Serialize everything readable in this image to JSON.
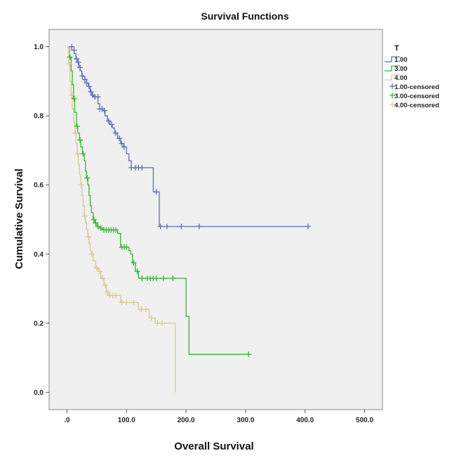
{
  "chart_data": {
    "type": "line",
    "step": true,
    "title": "Survival Functions",
    "xlabel": "Overall Survival",
    "ylabel": "Cumulative Survival",
    "xlim": [
      -30,
      530
    ],
    "ylim": [
      -0.05,
      1.05
    ],
    "x_ticks": [
      0,
      100,
      200,
      300,
      400,
      500
    ],
    "x_tick_labels": [
      ".0",
      "100.0",
      "200.0",
      "300.0",
      "400.0",
      "500.0"
    ],
    "y_ticks": [
      0.0,
      0.2,
      0.4,
      0.6,
      0.8,
      1.0
    ],
    "y_tick_labels": [
      "0.0",
      "0.2",
      "0.4",
      "0.6",
      "0.8",
      "1.0"
    ],
    "grid": false,
    "background": "#f0f0f0",
    "legend": {
      "title": "T",
      "placement": "top-right-outside",
      "entries": [
        "1.00",
        "3.00",
        "4.00",
        "1.00-censored",
        "3.00-censored",
        "4.00-censored"
      ]
    },
    "series": [
      {
        "name": "1.00",
        "color": "#5b6fb8",
        "steps": [
          [
            0,
            1.0
          ],
          [
            8,
            0.99
          ],
          [
            12,
            0.98
          ],
          [
            15,
            0.965
          ],
          [
            18,
            0.955
          ],
          [
            20,
            0.94
          ],
          [
            22,
            0.93
          ],
          [
            25,
            0.915
          ],
          [
            30,
            0.905
          ],
          [
            33,
            0.895
          ],
          [
            36,
            0.885
          ],
          [
            39,
            0.87
          ],
          [
            42,
            0.86
          ],
          [
            45,
            0.855
          ],
          [
            52,
            0.835
          ],
          [
            55,
            0.82
          ],
          [
            60,
            0.815
          ],
          [
            64,
            0.8
          ],
          [
            68,
            0.785
          ],
          [
            72,
            0.775
          ],
          [
            76,
            0.765
          ],
          [
            80,
            0.75
          ],
          [
            85,
            0.735
          ],
          [
            90,
            0.72
          ],
          [
            95,
            0.71
          ],
          [
            100,
            0.69
          ],
          [
            104,
            0.67
          ],
          [
            108,
            0.65
          ],
          [
            145,
            0.58
          ],
          [
            155,
            0.48
          ],
          [
            405,
            0.48
          ]
        ],
        "censored": [
          [
            8,
            1.0
          ],
          [
            12,
            0.99
          ],
          [
            16,
            0.965
          ],
          [
            19,
            0.955
          ],
          [
            22,
            0.94
          ],
          [
            26,
            0.915
          ],
          [
            30,
            0.905
          ],
          [
            33,
            0.895
          ],
          [
            37,
            0.885
          ],
          [
            40,
            0.87
          ],
          [
            43,
            0.86
          ],
          [
            47,
            0.855
          ],
          [
            52,
            0.855
          ],
          [
            55,
            0.82
          ],
          [
            59,
            0.82
          ],
          [
            63,
            0.815
          ],
          [
            70,
            0.785
          ],
          [
            75,
            0.775
          ],
          [
            82,
            0.75
          ],
          [
            88,
            0.735
          ],
          [
            92,
            0.72
          ],
          [
            96,
            0.71
          ],
          [
            108,
            0.65
          ],
          [
            115,
            0.65
          ],
          [
            120,
            0.65
          ],
          [
            126,
            0.65
          ],
          [
            150,
            0.58
          ],
          [
            157,
            0.48
          ],
          [
            168,
            0.48
          ],
          [
            192,
            0.48
          ],
          [
            222,
            0.48
          ],
          [
            405,
            0.48
          ]
        ]
      },
      {
        "name": "3.00",
        "color": "#2fb82f",
        "steps": [
          [
            0,
            1.0
          ],
          [
            4,
            0.97
          ],
          [
            7,
            0.93
          ],
          [
            9,
            0.89
          ],
          [
            11,
            0.85
          ],
          [
            13,
            0.81
          ],
          [
            16,
            0.77
          ],
          [
            18,
            0.75
          ],
          [
            21,
            0.73
          ],
          [
            23,
            0.71
          ],
          [
            26,
            0.69
          ],
          [
            29,
            0.67
          ],
          [
            31,
            0.64
          ],
          [
            33,
            0.62
          ],
          [
            35,
            0.6
          ],
          [
            37,
            0.57
          ],
          [
            39,
            0.54
          ],
          [
            41,
            0.52
          ],
          [
            44,
            0.5
          ],
          [
            47,
            0.49
          ],
          [
            50,
            0.48
          ],
          [
            55,
            0.475
          ],
          [
            60,
            0.47
          ],
          [
            85,
            0.46
          ],
          [
            90,
            0.42
          ],
          [
            104,
            0.41
          ],
          [
            107,
            0.4
          ],
          [
            110,
            0.375
          ],
          [
            115,
            0.35
          ],
          [
            120,
            0.33
          ],
          [
            200,
            0.22
          ],
          [
            205,
            0.11
          ],
          [
            305,
            0.11
          ]
        ],
        "censored": [
          [
            5,
            0.97
          ],
          [
            12,
            0.85
          ],
          [
            17,
            0.77
          ],
          [
            22,
            0.73
          ],
          [
            27,
            0.69
          ],
          [
            34,
            0.62
          ],
          [
            45,
            0.5
          ],
          [
            48,
            0.49
          ],
          [
            52,
            0.48
          ],
          [
            57,
            0.475
          ],
          [
            62,
            0.47
          ],
          [
            66,
            0.47
          ],
          [
            70,
            0.47
          ],
          [
            74,
            0.47
          ],
          [
            78,
            0.47
          ],
          [
            82,
            0.47
          ],
          [
            92,
            0.42
          ],
          [
            96,
            0.42
          ],
          [
            100,
            0.42
          ],
          [
            112,
            0.375
          ],
          [
            118,
            0.35
          ],
          [
            126,
            0.33
          ],
          [
            135,
            0.33
          ],
          [
            140,
            0.33
          ],
          [
            145,
            0.33
          ],
          [
            150,
            0.33
          ],
          [
            162,
            0.33
          ],
          [
            178,
            0.33
          ],
          [
            305,
            0.11
          ]
        ]
      },
      {
        "name": "4.00",
        "color": "#d9c890",
        "steps": [
          [
            0,
            1.0
          ],
          [
            3,
            0.95
          ],
          [
            5,
            0.9
          ],
          [
            7,
            0.86
          ],
          [
            9,
            0.82
          ],
          [
            11,
            0.78
          ],
          [
            13,
            0.75
          ],
          [
            15,
            0.72
          ],
          [
            17,
            0.69
          ],
          [
            19,
            0.66
          ],
          [
            21,
            0.63
          ],
          [
            23,
            0.6
          ],
          [
            25,
            0.57
          ],
          [
            27,
            0.54
          ],
          [
            29,
            0.51
          ],
          [
            31,
            0.49
          ],
          [
            33,
            0.47
          ],
          [
            35,
            0.45
          ],
          [
            37,
            0.43
          ],
          [
            39,
            0.41
          ],
          [
            41,
            0.4
          ],
          [
            44,
            0.38
          ],
          [
            48,
            0.36
          ],
          [
            52,
            0.35
          ],
          [
            57,
            0.33
          ],
          [
            62,
            0.31
          ],
          [
            66,
            0.29
          ],
          [
            70,
            0.28
          ],
          [
            90,
            0.26
          ],
          [
            120,
            0.24
          ],
          [
            138,
            0.215
          ],
          [
            148,
            0.2
          ],
          [
            182,
            0.0
          ]
        ],
        "censored": [
          [
            4,
            0.95
          ],
          [
            8,
            0.86
          ],
          [
            14,
            0.75
          ],
          [
            18,
            0.69
          ],
          [
            24,
            0.6
          ],
          [
            30,
            0.51
          ],
          [
            36,
            0.45
          ],
          [
            42,
            0.4
          ],
          [
            50,
            0.36
          ],
          [
            55,
            0.35
          ],
          [
            60,
            0.33
          ],
          [
            64,
            0.31
          ],
          [
            68,
            0.29
          ],
          [
            72,
            0.28
          ],
          [
            77,
            0.28
          ],
          [
            82,
            0.28
          ],
          [
            92,
            0.26
          ],
          [
            100,
            0.26
          ],
          [
            112,
            0.26
          ],
          [
            125,
            0.24
          ],
          [
            133,
            0.24
          ],
          [
            142,
            0.215
          ],
          [
            152,
            0.2
          ],
          [
            160,
            0.2
          ]
        ]
      }
    ]
  }
}
